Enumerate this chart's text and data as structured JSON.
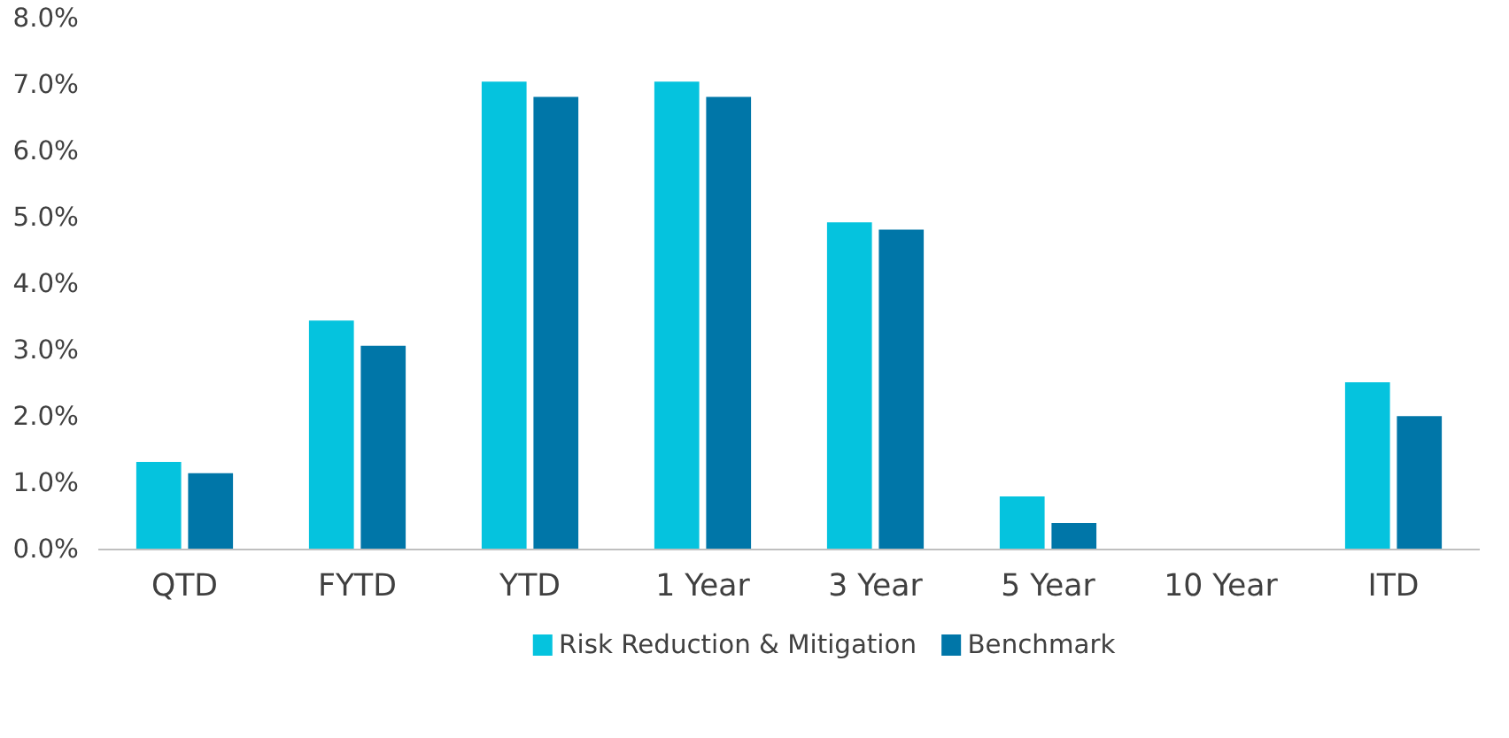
{
  "chart_data": {
    "type": "bar",
    "categories": [
      "QTD",
      "FYTD",
      "YTD",
      "1 Year",
      "3 Year",
      "5 Year",
      "10 Year",
      "ITD"
    ],
    "series": [
      {
        "name": "Risk Reduction & Mitigation",
        "color": "#05c3de",
        "values": [
          1.32,
          3.45,
          7.05,
          7.05,
          4.93,
          0.8,
          null,
          2.52
        ]
      },
      {
        "name": "Benchmark",
        "color": "#0076a8",
        "values": [
          1.15,
          3.07,
          6.82,
          6.82,
          4.82,
          0.4,
          null,
          2.01
        ]
      }
    ],
    "ylim": [
      0,
      8
    ],
    "yticks": [
      {
        "value": 0,
        "label": "0.0%"
      },
      {
        "value": 1,
        "label": "1.0%"
      },
      {
        "value": 2,
        "label": "2.0%"
      },
      {
        "value": 3,
        "label": "3.0%"
      },
      {
        "value": 4,
        "label": "4.0%"
      },
      {
        "value": 5,
        "label": "5.0%"
      },
      {
        "value": 6,
        "label": "6.0%"
      },
      {
        "value": 7,
        "label": "7.0%"
      },
      {
        "value": 8,
        "label": "8.0%"
      }
    ],
    "grid": false,
    "legend": "bottom"
  }
}
